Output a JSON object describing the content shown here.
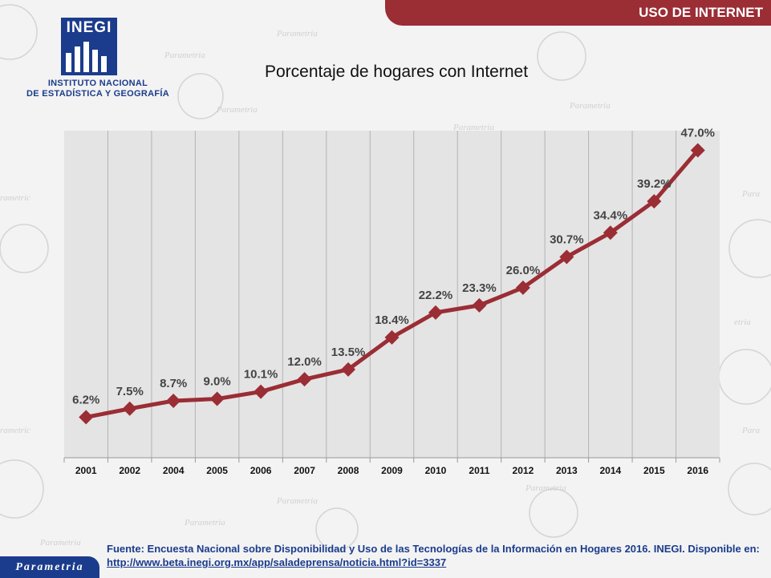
{
  "header": {
    "banner": "USO DE INTERNET"
  },
  "logo": {
    "word": "INEGI",
    "line1": "INSTITUTO NACIONAL",
    "line2": "DE ESTADÍSTICA Y GEOGRAFÍA"
  },
  "watermark_word": "Parametria",
  "footer": {
    "source": "Fuente: Encuesta Nacional sobre Disponibilidad y Uso de las Tecnologías de la Información en Hogares 2016. INEGI. Disponible en:",
    "link": "http://www.beta.inegi.org.mx/app/saladeprensa/noticia.html?id=3337"
  },
  "brand": "Parametria",
  "colors": {
    "banner": "#9b2d35",
    "line": "#9b2d35",
    "plot_bg": "#e4e4e4",
    "text_blue": "#1b3c8c"
  },
  "chart_data": {
    "type": "line",
    "title": "Porcentaje de hogares con Internet",
    "xlabel": "",
    "ylabel": "",
    "categories": [
      "2001",
      "2002",
      "2004",
      "2005",
      "2006",
      "2007",
      "2008",
      "2009",
      "2010",
      "2011",
      "2012",
      "2013",
      "2014",
      "2015",
      "2016"
    ],
    "values": [
      6.2,
      7.5,
      8.7,
      9.0,
      10.1,
      12.0,
      13.5,
      18.4,
      22.2,
      23.3,
      26.0,
      30.7,
      34.4,
      39.2,
      47.0
    ],
    "data_labels": [
      "6.2%",
      "7.5%",
      "8.7%",
      "9.0%",
      "10.1%",
      "12.0%",
      "13.5%",
      "18.4%",
      "22.2%",
      "23.3%",
      "26.0%",
      "30.7%",
      "34.4%",
      "39.2%",
      "47.0%"
    ],
    "ylim": [
      0,
      50
    ],
    "grid": "vertical",
    "legend": "none",
    "marker": "diamond"
  }
}
